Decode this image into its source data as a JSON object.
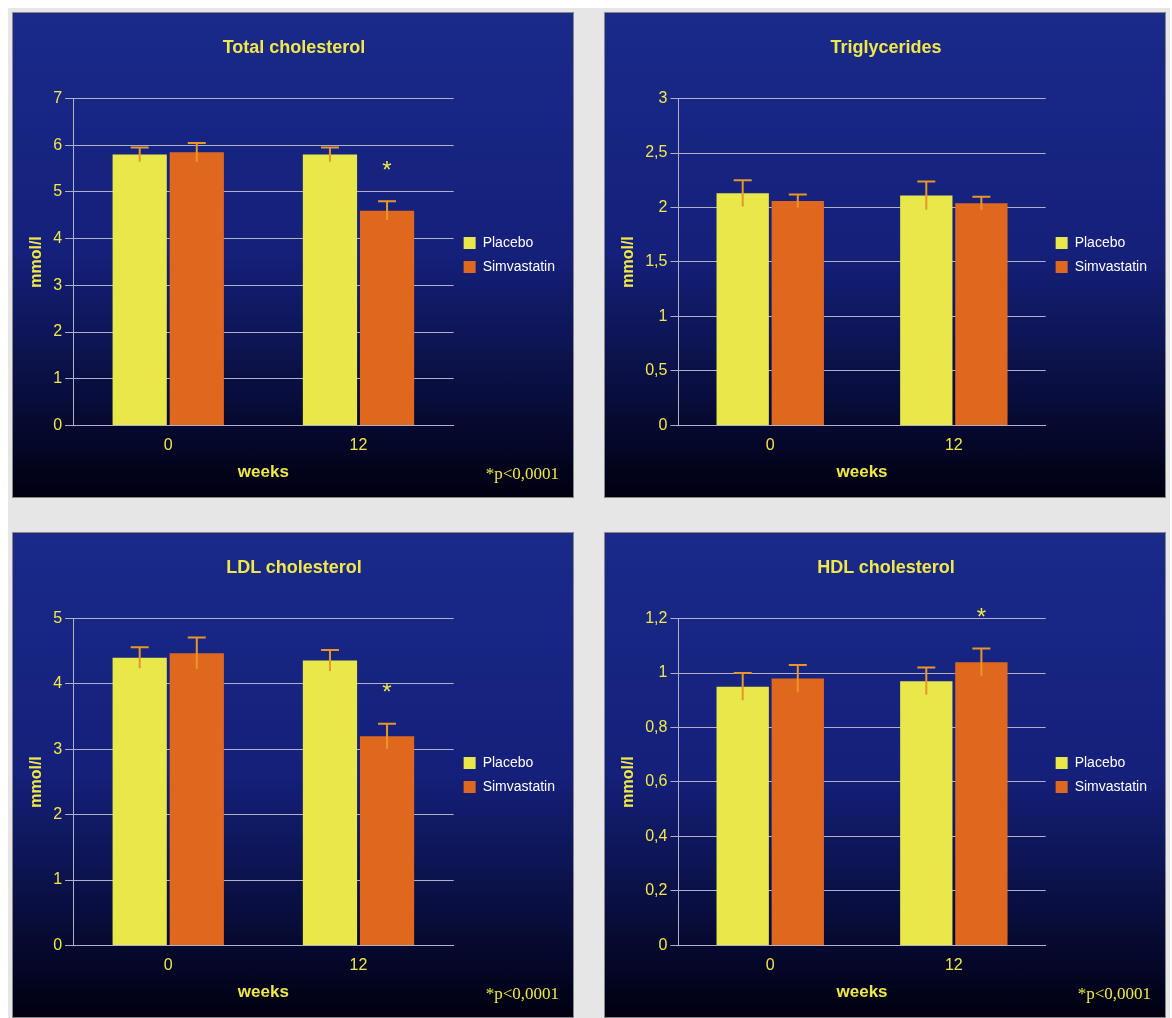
{
  "chart_data": [
    {
      "type": "bar",
      "title": "Total cholesterol",
      "xlabel": "weeks",
      "ylabel": "mmol/l",
      "categories": [
        "0",
        "12"
      ],
      "series": [
        {
          "name": "Placebo",
          "color": "#e8e84a",
          "values": [
            5.8,
            5.8
          ],
          "errors": [
            0.15,
            0.15
          ]
        },
        {
          "name": "Simvastatin",
          "color": "#e0681e",
          "values": [
            5.85,
            4.6
          ],
          "errors": [
            0.2,
            0.2
          ]
        }
      ],
      "ylim": [
        0,
        7
      ],
      "yticks": [
        0,
        1,
        2,
        3,
        4,
        5,
        6,
        7
      ],
      "grid": "y",
      "legend": "right",
      "annotations": [
        "*",
        "*p<0,0001"
      ]
    },
    {
      "type": "bar",
      "title": "Triglycerides",
      "xlabel": "weeks",
      "ylabel": "mmol/l",
      "categories": [
        "0",
        "12"
      ],
      "series": [
        {
          "name": "Placebo",
          "color": "#e8e84a",
          "values": [
            2.13,
            2.11
          ],
          "errors": [
            0.12,
            0.13
          ]
        },
        {
          "name": "Simvastatin",
          "color": "#e0681e",
          "values": [
            2.06,
            2.04
          ],
          "errors": [
            0.06,
            0.06
          ]
        }
      ],
      "ylim": [
        0,
        3
      ],
      "yticks": [
        0,
        {
          "value": 0.5,
          "label": "0,5"
        },
        1,
        {
          "value": 1.5,
          "label": "1,5"
        },
        2,
        {
          "value": 2.5,
          "label": "2,5"
        },
        3
      ],
      "grid": "y",
      "legend": "right"
    },
    {
      "type": "bar",
      "title": "LDL cholesterol",
      "xlabel": "weeks",
      "ylabel": "mmol/l",
      "categories": [
        "0",
        "12"
      ],
      "series": [
        {
          "name": "Placebo",
          "color": "#e8e84a",
          "values": [
            4.4,
            4.36
          ],
          "errors": [
            0.16,
            0.16
          ]
        },
        {
          "name": "Simvastatin",
          "color": "#e0681e",
          "values": [
            4.47,
            3.2
          ],
          "errors": [
            0.24,
            0.19
          ]
        }
      ],
      "ylim": [
        0,
        5
      ],
      "yticks": [
        0,
        1,
        2,
        3,
        4,
        5
      ],
      "grid": "y",
      "legend": "right",
      "annotations": [
        "*",
        "*p<0,0001"
      ]
    },
    {
      "type": "bar",
      "title": "HDL cholesterol",
      "xlabel": "weeks",
      "ylabel": "mmol/l",
      "categories": [
        "0",
        "12"
      ],
      "series": [
        {
          "name": "Placebo",
          "color": "#e8e84a",
          "values": [
            0.95,
            0.97
          ],
          "errors": [
            0.05,
            0.05
          ]
        },
        {
          "name": "Simvastatin",
          "color": "#e0681e",
          "values": [
            0.98,
            1.04
          ],
          "errors": [
            0.05,
            0.05
          ]
        }
      ],
      "ylim": [
        0,
        1.2
      ],
      "yticks": [
        0,
        {
          "value": 0.2,
          "label": "0,2"
        },
        {
          "value": 0.4,
          "label": "0,4"
        },
        {
          "value": 0.6,
          "label": "0,6"
        },
        {
          "value": 0.8,
          "label": "0,8"
        },
        1,
        {
          "value": 1.2,
          "label": "1,2"
        }
      ],
      "grid": "y",
      "legend": "right",
      "annotations": [
        "*",
        "*p<0,0001"
      ]
    }
  ]
}
